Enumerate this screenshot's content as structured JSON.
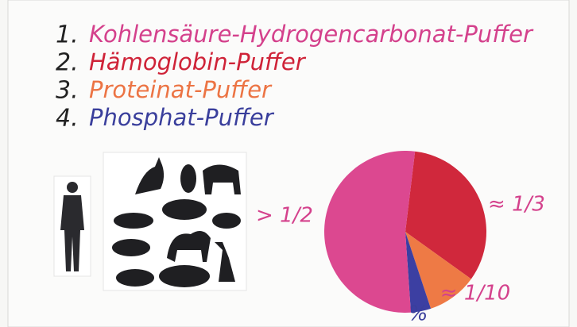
{
  "list": [
    {
      "number": "1.",
      "text": "Kohlensäure-Hydrogencarbonat-Puffer",
      "color": "#d4418c"
    },
    {
      "number": "2.",
      "text": "Hämoglobin-Puffer",
      "color": "#cf2338"
    },
    {
      "number": "3.",
      "text": "Proteinat-Puffer",
      "color": "#ec7444"
    },
    {
      "number": "4.",
      "text": "Phosphat-Puffer",
      "color": "#3a3f9c"
    }
  ],
  "chart_data": {
    "type": "pie",
    "values": [
      33,
      10,
      4,
      53
    ],
    "value_labels": [
      "≈ 1/3",
      "≈ 1/10",
      "%",
      "> 1/2"
    ],
    "colors": [
      "#d0283c",
      "#ee7a45",
      "#3c3fa2",
      "#dc4890"
    ],
    "label_colors": [
      "#d4418c",
      "#d4418c",
      "#3a3f9c",
      "#d4418c"
    ]
  }
}
